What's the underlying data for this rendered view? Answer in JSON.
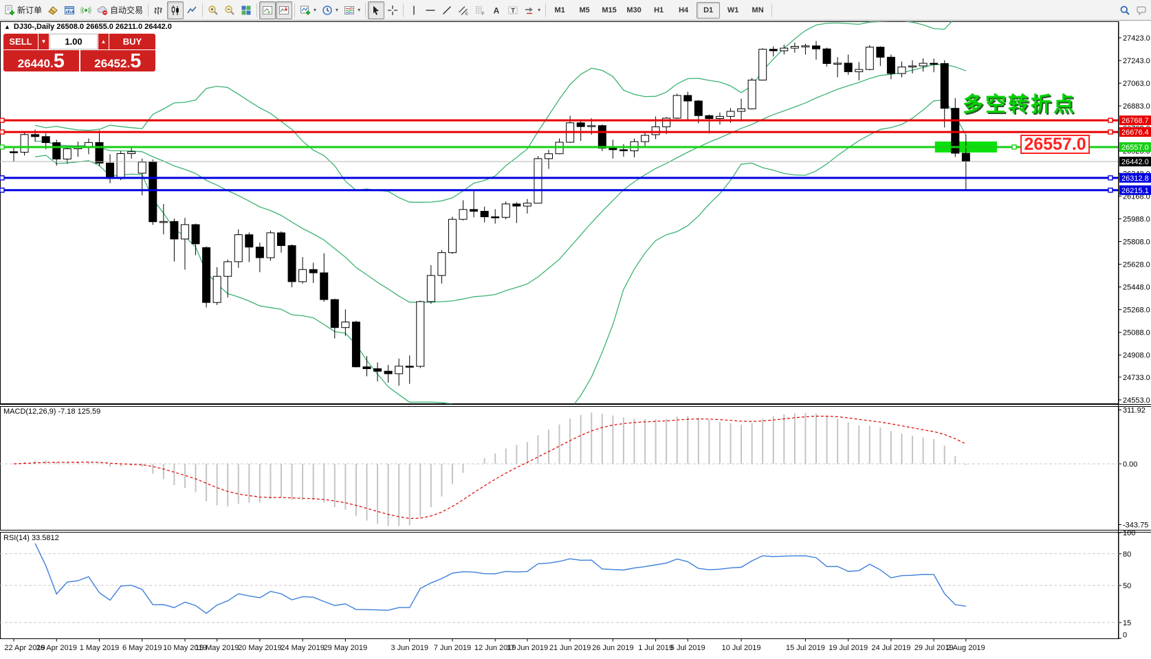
{
  "toolbar": {
    "buttons": {
      "new_order": "新订单",
      "auto_trading": "自动交易"
    },
    "timeframes": [
      "M1",
      "M5",
      "M15",
      "M30",
      "H1",
      "H4",
      "D1",
      "W1",
      "MN"
    ],
    "active_timeframe": "D1",
    "icons": [
      "new-order",
      "eraser",
      "charts-window",
      "signal",
      "auto-trading",
      "bar-chart",
      "candlestick-chart",
      "line-chart",
      "zoom-in",
      "zoom-out",
      "tile-windows",
      "auto-scroll",
      "chart-shift",
      "new-chart",
      "periods",
      "templates",
      "cursor",
      "crosshair",
      "vertical-line",
      "horizontal-line",
      "trendline",
      "equidistant-channel",
      "fibonacci",
      "text",
      "text-label",
      "shapes",
      "search",
      "chat"
    ]
  },
  "symbol_header": {
    "collapse": "▲",
    "text": "DJ30-,Daily  26508.0 26655.0 26211.0 26442.0"
  },
  "one_click": {
    "sell": "SELL",
    "buy": "BUY",
    "volume": "1.00",
    "sell_price": "26440",
    "sell_pip": "5",
    "buy_price": "26452",
    "buy_pip": "5"
  },
  "annotations": {
    "turning_point": "多空转折点",
    "callout": "26557.0"
  },
  "indicator_labels": {
    "macd": "MACD(12,26,9) -7.18 125.59",
    "rsi": "RSI(14) 33.5812"
  },
  "chart_data": {
    "type": "candlestick",
    "symbol": "DJ30-",
    "timeframe": "Daily",
    "current_bar": {
      "open": 26508.0,
      "high": 26655.0,
      "low": 26211.0,
      "close": 26442.0
    },
    "y_ticks": [
      27423.0,
      27243.0,
      27063.0,
      26883.0,
      26708.0,
      26528.0,
      26348.0,
      26168.0,
      25988.0,
      25808.0,
      25628.0,
      25448.0,
      25268.0,
      25088.0,
      24908.0,
      24733.0,
      24553.0
    ],
    "x_labels": [
      [
        "22 Apr 2019",
        0
      ],
      [
        "26 Apr 2019",
        4
      ],
      [
        "1 May 2019",
        8
      ],
      [
        "6 May 2019",
        12
      ],
      [
        "10 May 2019",
        16
      ],
      [
        "15 May 2019",
        19
      ],
      [
        "20 May 2019",
        23
      ],
      [
        "24 May 2019",
        27
      ],
      [
        "29 May 2019",
        31
      ],
      [
        "3 Jun 2019",
        37
      ],
      [
        "7 Jun 2019",
        41
      ],
      [
        "12 Jun 2019",
        45
      ],
      [
        "17 Jun 2019",
        48
      ],
      [
        "21 Jun 2019",
        52
      ],
      [
        "26 Jun 2019",
        56
      ],
      [
        "1 Jul 2019",
        60
      ],
      [
        "5 Jul 2019",
        63
      ],
      [
        "10 Jul 2019",
        68
      ],
      [
        "15 Jul 2019",
        74
      ],
      [
        "19 Jul 2019",
        78
      ],
      [
        "24 Jul 2019",
        82
      ],
      [
        "29 Jul 2019",
        86
      ],
      [
        "2 Aug 2019",
        89
      ]
    ],
    "candles": [
      [
        26520,
        26560,
        26440,
        26516
      ],
      [
        26516,
        26680,
        26490,
        26656
      ],
      [
        26656,
        26695,
        26600,
        26640
      ],
      [
        26640,
        26665,
        26540,
        26592
      ],
      [
        26592,
        26615,
        26410,
        26462
      ],
      [
        26462,
        26560,
        26425,
        26543
      ],
      [
        26543,
        26600,
        26480,
        26554
      ],
      [
        26554,
        26625,
        26500,
        26593
      ],
      [
        26593,
        26690,
        26405,
        26430
      ],
      [
        26430,
        26500,
        26270,
        26307
      ],
      [
        26307,
        26525,
        26295,
        26505
      ],
      [
        26505,
        26560,
        26465,
        26520
      ],
      [
        26350,
        26465,
        26175,
        26438
      ],
      [
        26438,
        26458,
        25940,
        25965
      ],
      [
        25965,
        26105,
        25865,
        25967
      ],
      [
        25967,
        25990,
        25650,
        25828
      ],
      [
        25828,
        25995,
        25585,
        25942
      ],
      [
        25942,
        25950,
        25700,
        25790
      ],
      [
        25760,
        25770,
        25285,
        25325
      ],
      [
        25325,
        25605,
        25305,
        25532
      ],
      [
        25532,
        25665,
        25365,
        25648
      ],
      [
        25648,
        25905,
        25600,
        25862
      ],
      [
        25862,
        25880,
        25645,
        25764
      ],
      [
        25764,
        25800,
        25565,
        25680
      ],
      [
        25680,
        25895,
        25655,
        25877
      ],
      [
        25877,
        25890,
        25720,
        25776
      ],
      [
        25776,
        25785,
        25445,
        25490
      ],
      [
        25490,
        25685,
        25475,
        25586
      ],
      [
        25586,
        25640,
        25480,
        25560
      ],
      [
        25560,
        25715,
        25330,
        25348
      ],
      [
        25348,
        25355,
        25040,
        25126
      ],
      [
        25126,
        25270,
        25060,
        25170
      ],
      [
        25170,
        25180,
        24810,
        24815
      ],
      [
        24815,
        24900,
        24740,
        24800
      ],
      [
        24800,
        24850,
        24700,
        24780
      ],
      [
        24780,
        24830,
        24690,
        24760
      ],
      [
        24760,
        24880,
        24665,
        24820
      ],
      [
        24820,
        24905,
        24680,
        24819
      ],
      [
        24819,
        25340,
        24805,
        25332
      ],
      [
        25332,
        25620,
        25315,
        25539
      ],
      [
        25539,
        25740,
        25475,
        25720
      ],
      [
        25720,
        26005,
        25710,
        25984
      ],
      [
        25984,
        26135,
        25975,
        26062
      ],
      [
        26062,
        26215,
        26000,
        26048
      ],
      [
        26048,
        26085,
        25960,
        26004
      ],
      [
        26004,
        26065,
        25950,
        26000
      ],
      [
        26000,
        26125,
        25985,
        26106
      ],
      [
        26106,
        26120,
        25955,
        26089
      ],
      [
        26089,
        26145,
        26030,
        26112
      ],
      [
        26112,
        26485,
        26110,
        26465
      ],
      [
        26465,
        26535,
        26385,
        26504
      ],
      [
        26504,
        26625,
        26500,
        26595
      ],
      [
        26595,
        26805,
        26590,
        26749
      ],
      [
        26749,
        26765,
        26605,
        26719
      ],
      [
        26719,
        26785,
        26655,
        26727
      ],
      [
        26727,
        26735,
        26525,
        26548
      ],
      [
        26548,
        26615,
        26465,
        26536
      ],
      [
        26536,
        26580,
        26480,
        26527
      ],
      [
        26527,
        26625,
        26475,
        26600
      ],
      [
        26600,
        26680,
        26560,
        26650
      ],
      [
        26655,
        26800,
        26620,
        26717
      ],
      [
        26717,
        26795,
        26660,
        26786
      ],
      [
        26786,
        26980,
        26780,
        26966
      ],
      [
        26966,
        26995,
        26775,
        26922
      ],
      [
        26922,
        26930,
        26745,
        26806
      ],
      [
        26806,
        26815,
        26665,
        26783
      ],
      [
        26783,
        26830,
        26735,
        26800
      ],
      [
        26800,
        26865,
        26750,
        26840
      ],
      [
        26840,
        26940,
        26760,
        26860
      ],
      [
        26860,
        27105,
        26855,
        27088
      ],
      [
        27088,
        27340,
        27085,
        27332
      ],
      [
        27332,
        27355,
        27275,
        27320
      ],
      [
        27320,
        27368,
        27290,
        27341
      ],
      [
        27341,
        27385,
        27305,
        27355
      ],
      [
        27355,
        27375,
        27290,
        27359
      ],
      [
        27359,
        27398,
        27250,
        27335
      ],
      [
        27335,
        27345,
        27195,
        27219
      ],
      [
        27219,
        27270,
        27110,
        27222
      ],
      [
        27222,
        27290,
        27130,
        27154
      ],
      [
        27154,
        27230,
        27085,
        27172
      ],
      [
        27172,
        27365,
        27165,
        27349
      ],
      [
        27349,
        27355,
        27200,
        27269
      ],
      [
        27269,
        27290,
        27095,
        27140
      ],
      [
        27140,
        27235,
        27110,
        27192
      ],
      [
        27192,
        27245,
        27140,
        27200
      ],
      [
        27200,
        27260,
        27155,
        27221
      ],
      [
        27221,
        27258,
        27150,
        27219
      ],
      [
        27219,
        27245,
        26712,
        26864
      ],
      [
        26864,
        26945,
        26478,
        26508
      ],
      [
        26508,
        26655,
        26211,
        26442
      ]
    ],
    "h_lines": [
      {
        "price": 26768.7,
        "label": "26768.7",
        "color": "#e60000",
        "handle_right_x": 1615
      },
      {
        "price": 26676.4,
        "label": "26676.4",
        "color": "#e60000",
        "handle_right_x": 1615
      },
      {
        "price": 26557.0,
        "label": "26557.0",
        "color": "#16cf16",
        "handle_right_x": 1475
      },
      {
        "price": 26312.8,
        "label": "26312.8",
        "color": "#0000e0",
        "handle_right_x": 1615
      },
      {
        "price": 26215.1,
        "label": "26215.1",
        "color": "#0000e0",
        "handle_right_x": 1615
      }
    ],
    "current_price": {
      "price": 26442.0,
      "label": "26442.0",
      "line_color": "#b4b4b4",
      "label_bg": "#000000"
    },
    "highlight_box": {
      "price_top": 26601,
      "price_bottom": 26514,
      "start_bar": 86.1,
      "end_bar": 91.9,
      "color": "#0be00b"
    },
    "bollinger": {
      "period": 20,
      "deviation": 2,
      "color": "#3cb371"
    },
    "macd": {
      "fast": 12,
      "slow": 26,
      "signal": 9,
      "main_value": -7.18,
      "signal_value": 125.59,
      "axis_labels": [
        "311.92",
        "0.00",
        "-343.75"
      ],
      "hist_color": "#c4c4c4",
      "signal_color": "#e00000"
    },
    "rsi": {
      "period": 14,
      "value": 33.5812,
      "axis_labels": [
        "100",
        "80",
        "50",
        "15",
        "0"
      ],
      "levels": [
        80,
        50,
        15
      ],
      "color": "#3d7edb"
    }
  }
}
